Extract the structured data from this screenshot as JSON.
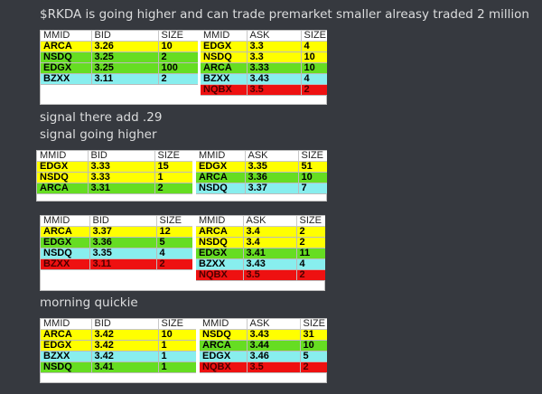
{
  "messages": {
    "m1": "$RKDA is going higher and can trade premarket smaller alreasy traded 2 million",
    "m2": "signal there add .29",
    "m3": "signal going higher",
    "m4": "morning quickie"
  },
  "colors": {
    "yellow": "#ffff00",
    "green": "#66dd22",
    "cyan": "#88eeee",
    "red": "#ee1111"
  },
  "headers": {
    "bid": [
      "MMID",
      "BID",
      "SIZE"
    ],
    "ask": [
      "MMID",
      "ASK",
      "SIZE"
    ]
  },
  "snapshots": [
    {
      "bid_rows": [
        {
          "mm": "ARCA",
          "px": "3.26",
          "sz": "10",
          "c": "yellow"
        },
        {
          "mm": "NSDQ",
          "px": "3.25",
          "sz": "2",
          "c": "green"
        },
        {
          "mm": "EDGX",
          "px": "3.25",
          "sz": "100",
          "c": "green"
        },
        {
          "mm": "BZXX",
          "px": "3.11",
          "sz": "2",
          "c": "cyan"
        }
      ],
      "ask_rows": [
        {
          "mm": "EDGX",
          "px": "3.3",
          "sz": "4",
          "c": "yellow"
        },
        {
          "mm": "NSDQ",
          "px": "3.3",
          "sz": "10",
          "c": "yellow"
        },
        {
          "mm": "ARCA",
          "px": "3.33",
          "sz": "10",
          "c": "green"
        },
        {
          "mm": "BZXX",
          "px": "3.43",
          "sz": "4",
          "c": "cyan"
        },
        {
          "mm": "NQBX",
          "px": "3.5",
          "sz": "2",
          "c": "red"
        }
      ]
    },
    {
      "bid_rows": [
        {
          "mm": "EDGX",
          "px": "3.33",
          "sz": "15",
          "c": "yellow"
        },
        {
          "mm": "NSDQ",
          "px": "3.33",
          "sz": "1",
          "c": "yellow"
        },
        {
          "mm": "ARCA",
          "px": "3.31",
          "sz": "2",
          "c": "green"
        }
      ],
      "ask_rows": [
        {
          "mm": "EDGX",
          "px": "3.35",
          "sz": "51",
          "c": "yellow"
        },
        {
          "mm": "ARCA",
          "px": "3.36",
          "sz": "10",
          "c": "green"
        },
        {
          "mm": "NSDQ",
          "px": "3.37",
          "sz": "7",
          "c": "cyan"
        }
      ]
    },
    {
      "bid_rows": [
        {
          "mm": "ARCA",
          "px": "3.37",
          "sz": "12",
          "c": "yellow"
        },
        {
          "mm": "EDGX",
          "px": "3.36",
          "sz": "5",
          "c": "green"
        },
        {
          "mm": "NSDQ",
          "px": "3.35",
          "sz": "4",
          "c": "cyan"
        },
        {
          "mm": "BZXX",
          "px": "3.11",
          "sz": "2",
          "c": "red"
        }
      ],
      "ask_rows": [
        {
          "mm": "ARCA",
          "px": "3.4",
          "sz": "2",
          "c": "yellow"
        },
        {
          "mm": "NSDQ",
          "px": "3.4",
          "sz": "2",
          "c": "yellow"
        },
        {
          "mm": "EDGX",
          "px": "3.41",
          "sz": "11",
          "c": "green"
        },
        {
          "mm": "BZXX",
          "px": "3.43",
          "sz": "4",
          "c": "cyan"
        },
        {
          "mm": "NQBX",
          "px": "3.5",
          "sz": "2",
          "c": "red"
        }
      ]
    },
    {
      "bid_rows": [
        {
          "mm": "ARCA",
          "px": "3.42",
          "sz": "10",
          "c": "yellow"
        },
        {
          "mm": "EDGX",
          "px": "3.42",
          "sz": "1",
          "c": "yellow"
        },
        {
          "mm": "BZXX",
          "px": "3.42",
          "sz": "1",
          "c": "cyan"
        },
        {
          "mm": "NSDQ",
          "px": "3.41",
          "sz": "1",
          "c": "green"
        }
      ],
      "ask_rows": [
        {
          "mm": "NSDQ",
          "px": "3.43",
          "sz": "31",
          "c": "yellow"
        },
        {
          "mm": "ARCA",
          "px": "3.44",
          "sz": "10",
          "c": "green"
        },
        {
          "mm": "EDGX",
          "px": "3.46",
          "sz": "5",
          "c": "cyan"
        },
        {
          "mm": "NQBX",
          "px": "3.5",
          "sz": "2",
          "c": "red"
        }
      ]
    }
  ]
}
